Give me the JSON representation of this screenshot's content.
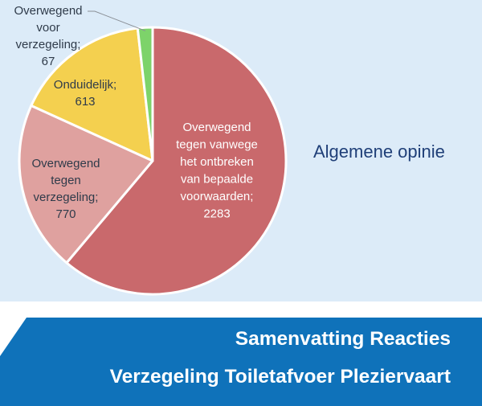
{
  "chart_data": {
    "type": "pie",
    "title": "Algemene opinie",
    "slices": [
      {
        "label_lines": [
          "Overwegend",
          "tegen vanwege",
          "het ontbreken",
          "van bepaalde",
          "voorwaarden;",
          "2283"
        ],
        "value": 2283,
        "color": "#c9696c",
        "label_color": "#ffffff"
      },
      {
        "label_lines": [
          "Overwegend",
          "tegen",
          "verzegeling;",
          "770"
        ],
        "value": 770,
        "color": "#dfa19f",
        "label_color": "#2f3b4a"
      },
      {
        "label_lines": [
          "Onduidelijk;",
          "613"
        ],
        "value": 613,
        "color": "#f4d04f",
        "label_color": "#2f3b4a"
      },
      {
        "label_lines": [
          "Overwegend",
          "voor",
          "verzegeling;",
          "67"
        ],
        "value": 67,
        "color": "#7dd36a",
        "label_color": "#2f3b4a"
      }
    ]
  },
  "banner": {
    "line1": "Samenvatting Reacties",
    "line2": "Verzegeling Toiletafvoer Pleziervaart",
    "color": "#0f72ba"
  }
}
